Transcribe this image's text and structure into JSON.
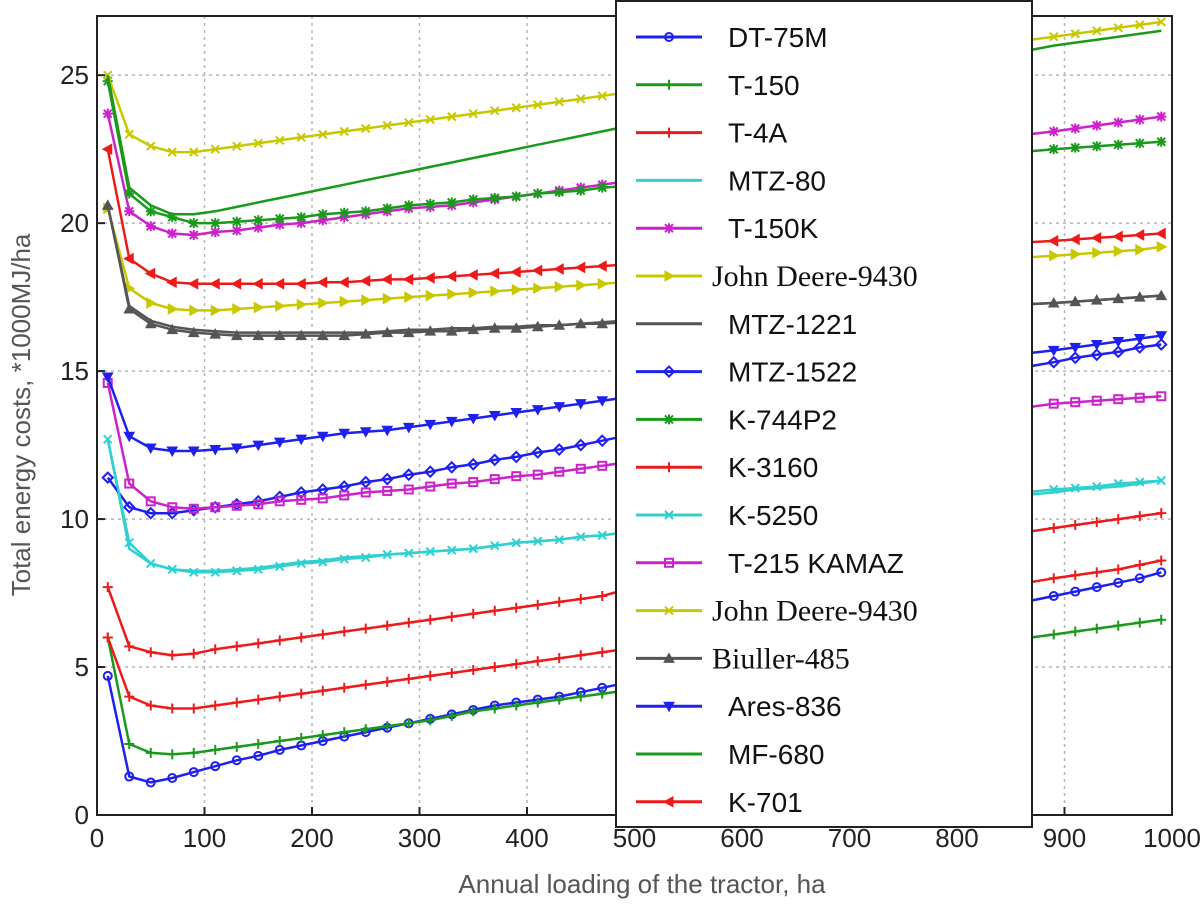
{
  "chart_data": {
    "type": "line",
    "title": "",
    "xlabel": "Annual loading of the tractor, ha",
    "ylabel": "Total energy costs, *1000MJ/ha",
    "xlim": [
      0,
      1000
    ],
    "ylim": [
      0,
      27
    ],
    "x_ticks": [
      "0",
      "100",
      "200",
      "300",
      "400",
      "500",
      "600",
      "700",
      "800",
      "900",
      "1000"
    ],
    "y_ticks": [
      "0",
      "5",
      "10",
      "15",
      "20",
      "25"
    ],
    "grid": true,
    "legend_position": "top-right",
    "x": [
      10,
      30,
      50,
      70,
      90,
      110,
      130,
      150,
      170,
      190,
      210,
      230,
      250,
      270,
      290,
      310,
      330,
      350,
      370,
      390,
      410,
      430,
      450,
      470,
      490,
      890,
      910,
      930,
      950,
      970,
      990
    ],
    "series": [
      {
        "name": "DT-75M",
        "color": "#2020ee",
        "marker": "circle",
        "font": "sans",
        "values": [
          4.7,
          1.3,
          1.1,
          1.25,
          1.45,
          1.65,
          1.85,
          2.0,
          2.2,
          2.35,
          2.5,
          2.65,
          2.8,
          2.95,
          3.1,
          3.25,
          3.4,
          3.55,
          3.7,
          3.8,
          3.9,
          4.0,
          4.15,
          4.3,
          4.45,
          7.4,
          7.55,
          7.7,
          7.85,
          8.0,
          8.2
        ]
      },
      {
        "name": "T-150",
        "color": "#1a9a1a",
        "marker": "plus",
        "font": "sans",
        "values": [
          6.0,
          2.4,
          2.1,
          2.05,
          2.1,
          2.2,
          2.3,
          2.4,
          2.5,
          2.6,
          2.7,
          2.8,
          2.9,
          3.0,
          3.1,
          3.2,
          3.35,
          3.5,
          3.6,
          3.7,
          3.8,
          3.9,
          4.0,
          4.1,
          4.2,
          6.1,
          6.2,
          6.3,
          6.4,
          6.5,
          6.6
        ]
      },
      {
        "name": "T-4A",
        "color": "#ee1a1a",
        "marker": "plus",
        "font": "sans",
        "values": [
          7.7,
          5.7,
          5.5,
          5.4,
          5.45,
          5.6,
          5.7,
          5.8,
          5.9,
          6.0,
          6.1,
          6.2,
          6.3,
          6.4,
          6.5,
          6.6,
          6.7,
          6.8,
          6.9,
          7.0,
          7.1,
          7.2,
          7.3,
          7.4,
          7.6,
          9.7,
          9.8,
          9.9,
          10.0,
          10.1,
          10.2
        ]
      },
      {
        "name": "MTZ-80",
        "color": "#30d0d0",
        "marker": "none",
        "font": "sans",
        "values": [
          12.7,
          9.0,
          8.5,
          8.3,
          8.25,
          8.25,
          8.3,
          8.35,
          8.45,
          8.55,
          8.6,
          8.7,
          8.75,
          8.8,
          8.85,
          8.9,
          8.95,
          9.0,
          9.1,
          9.2,
          9.25,
          9.3,
          9.4,
          9.45,
          9.55,
          10.9,
          11.0,
          11.05,
          11.1,
          11.2,
          11.3
        ]
      },
      {
        "name": "T-150K",
        "color": "#cc22cc",
        "marker": "star",
        "font": "sans",
        "values": [
          23.7,
          20.4,
          19.9,
          19.65,
          19.6,
          19.7,
          19.75,
          19.85,
          19.95,
          20.0,
          20.1,
          20.2,
          20.3,
          20.4,
          20.5,
          20.55,
          20.6,
          20.7,
          20.8,
          20.9,
          21.0,
          21.1,
          21.2,
          21.3,
          21.4,
          23.1,
          23.2,
          23.3,
          23.4,
          23.5,
          23.6
        ]
      },
      {
        "name": "John Deere-9430",
        "color": "#c8c800",
        "marker": "triangle-right",
        "font": "serif",
        "values": [
          20.5,
          17.8,
          17.3,
          17.1,
          17.05,
          17.05,
          17.1,
          17.15,
          17.2,
          17.25,
          17.3,
          17.35,
          17.4,
          17.45,
          17.5,
          17.55,
          17.6,
          17.65,
          17.7,
          17.75,
          17.8,
          17.85,
          17.9,
          17.95,
          18.0,
          18.9,
          18.95,
          19.0,
          19.05,
          19.1,
          19.2
        ]
      },
      {
        "name": "MTZ-1221",
        "color": "#555555",
        "marker": "none",
        "font": "sans",
        "values": [
          20.6,
          17.2,
          16.7,
          16.5,
          16.4,
          16.35,
          16.3,
          16.3,
          16.3,
          16.3,
          16.3,
          16.3,
          16.3,
          16.35,
          16.4,
          16.4,
          16.45,
          16.45,
          16.5,
          16.5,
          16.55,
          16.55,
          16.6,
          16.65,
          16.7,
          17.3,
          17.35,
          17.4,
          17.45,
          17.5,
          17.55
        ]
      },
      {
        "name": "MTZ-1522",
        "color": "#2020ee",
        "marker": "diamond",
        "font": "sans",
        "values": [
          11.4,
          10.4,
          10.2,
          10.2,
          10.3,
          10.4,
          10.5,
          10.6,
          10.75,
          10.9,
          11.0,
          11.1,
          11.25,
          11.35,
          11.5,
          11.6,
          11.75,
          11.85,
          12.0,
          12.1,
          12.25,
          12.35,
          12.5,
          12.65,
          12.8,
          15.3,
          15.45,
          15.55,
          15.65,
          15.8,
          15.9
        ]
      },
      {
        "name": "K-744P2",
        "color": "#1a9a1a",
        "marker": "star",
        "font": "sans",
        "values": [
          24.8,
          21.0,
          20.4,
          20.2,
          20.0,
          20.0,
          20.05,
          20.1,
          20.15,
          20.2,
          20.3,
          20.35,
          20.4,
          20.5,
          20.6,
          20.65,
          20.7,
          20.8,
          20.85,
          20.9,
          21.0,
          21.05,
          21.1,
          21.2,
          21.25,
          22.5,
          22.55,
          22.6,
          22.65,
          22.7,
          22.75
        ]
      },
      {
        "name": "K-3160",
        "color": "#ee1a1a",
        "marker": "plus",
        "font": "sans",
        "values": [
          6.0,
          4.0,
          3.7,
          3.6,
          3.6,
          3.7,
          3.8,
          3.9,
          4.0,
          4.1,
          4.2,
          4.3,
          4.4,
          4.5,
          4.6,
          4.7,
          4.8,
          4.9,
          5.0,
          5.1,
          5.2,
          5.3,
          5.4,
          5.5,
          5.6,
          8.0,
          8.1,
          8.2,
          8.3,
          8.45,
          8.6
        ]
      },
      {
        "name": "K-5250",
        "color": "#30d0d0",
        "marker": "x",
        "font": "sans",
        "values": [
          12.7,
          9.2,
          8.5,
          8.3,
          8.2,
          8.2,
          8.25,
          8.3,
          8.4,
          8.5,
          8.55,
          8.65,
          8.7,
          8.8,
          8.85,
          8.9,
          8.95,
          9.0,
          9.1,
          9.2,
          9.25,
          9.3,
          9.4,
          9.45,
          9.55,
          11.0,
          11.05,
          11.1,
          11.2,
          11.25,
          11.3
        ]
      },
      {
        "name": "T-215 KAMAZ",
        "color": "#cc22cc",
        "marker": "square",
        "font": "sans",
        "values": [
          14.6,
          11.2,
          10.6,
          10.4,
          10.35,
          10.4,
          10.45,
          10.5,
          10.6,
          10.65,
          10.7,
          10.8,
          10.9,
          10.95,
          11.0,
          11.1,
          11.2,
          11.25,
          11.35,
          11.45,
          11.5,
          11.6,
          11.7,
          11.8,
          11.9,
          13.9,
          13.95,
          14.0,
          14.05,
          14.1,
          14.15
        ]
      },
      {
        "name": "John Deere-9430",
        "color": "#c8c800",
        "marker": "x",
        "font": "serif",
        "values": [
          25.0,
          23.0,
          22.6,
          22.4,
          22.4,
          22.5,
          22.6,
          22.7,
          22.8,
          22.9,
          23.0,
          23.1,
          23.2,
          23.3,
          23.4,
          23.5,
          23.6,
          23.7,
          23.8,
          23.9,
          24.0,
          24.1,
          24.2,
          24.3,
          24.4,
          26.3,
          26.4,
          26.5,
          26.6,
          26.7,
          26.8
        ]
      },
      {
        "name": "Biuller-485",
        "color": "#555555",
        "marker": "triangle-up",
        "font": "serif",
        "values": [
          20.6,
          17.1,
          16.6,
          16.4,
          16.3,
          16.25,
          16.2,
          16.2,
          16.2,
          16.2,
          16.2,
          16.2,
          16.25,
          16.3,
          16.3,
          16.35,
          16.35,
          16.4,
          16.45,
          16.45,
          16.5,
          16.55,
          16.6,
          16.6,
          16.65,
          17.3,
          17.35,
          17.4,
          17.45,
          17.5,
          17.55
        ]
      },
      {
        "name": "Ares-836",
        "color": "#2020ee",
        "marker": "triangle-down",
        "font": "sans",
        "values": [
          14.8,
          12.8,
          12.4,
          12.3,
          12.3,
          12.35,
          12.4,
          12.5,
          12.6,
          12.7,
          12.8,
          12.9,
          12.95,
          13.0,
          13.1,
          13.2,
          13.3,
          13.4,
          13.5,
          13.6,
          13.7,
          13.8,
          13.9,
          14.0,
          14.1,
          15.7,
          15.8,
          15.9,
          16.0,
          16.1,
          16.2
        ]
      },
      {
        "name": "MF-680",
        "color": "#1a9a1a",
        "marker": "none",
        "font": "sans",
        "values": [
          25.0,
          21.2,
          20.6,
          20.3,
          20.3,
          20.4,
          20.55,
          20.7,
          20.85,
          21.0,
          21.15,
          21.3,
          21.45,
          21.6,
          21.75,
          21.9,
          22.05,
          22.2,
          22.35,
          22.5,
          22.65,
          22.8,
          22.95,
          23.1,
          23.25,
          26.0,
          26.1,
          26.2,
          26.3,
          26.4,
          26.5
        ]
      },
      {
        "name": "K-701",
        "color": "#ee1a1a",
        "marker": "triangle-left",
        "font": "sans",
        "values": [
          22.5,
          18.8,
          18.3,
          18.0,
          17.95,
          17.95,
          17.95,
          17.95,
          17.95,
          17.95,
          18.0,
          18.0,
          18.05,
          18.1,
          18.1,
          18.15,
          18.2,
          18.25,
          18.3,
          18.35,
          18.4,
          18.45,
          18.5,
          18.55,
          18.6,
          19.4,
          19.45,
          19.5,
          19.55,
          19.6,
          19.65
        ]
      }
    ]
  }
}
